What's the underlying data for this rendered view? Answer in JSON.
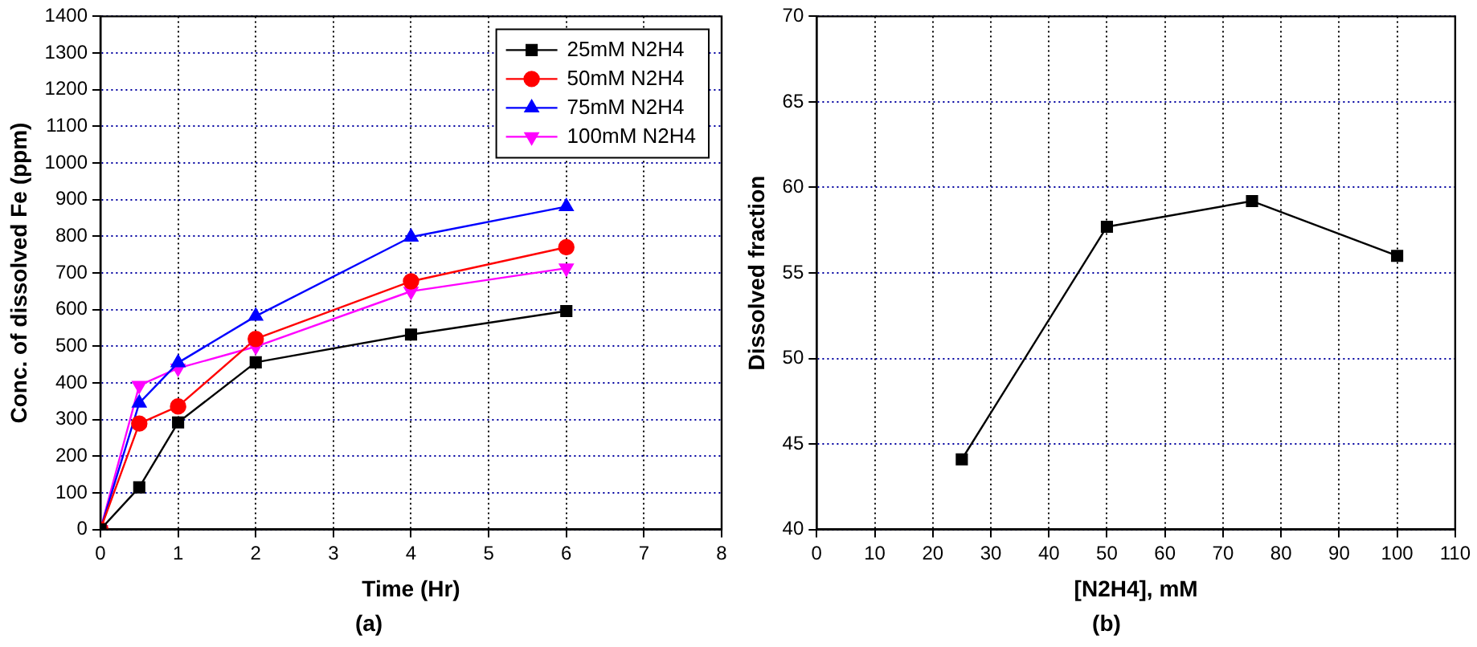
{
  "chart_data": [
    {
      "type": "line",
      "xlabel": "Time (Hr)",
      "ylabel": "Conc. of dissolved Fe (ppm)",
      "annotations": [
        "(a)"
      ],
      "xlim": [
        0,
        8
      ],
      "xticks": [
        0,
        1,
        2,
        3,
        4,
        5,
        6,
        7,
        8
      ],
      "ylim": [
        0,
        1400
      ],
      "yticks": [
        0,
        100,
        200,
        300,
        400,
        500,
        600,
        700,
        800,
        900,
        1000,
        1100,
        1200,
        1300,
        1400
      ],
      "grid": true,
      "legend": "top right",
      "series": [
        {
          "name": "25mM N2H4",
          "color": "#000000",
          "marker": "square",
          "x": [
            0,
            0.5,
            1,
            2,
            4,
            6
          ],
          "values": [
            0,
            115,
            292,
            456,
            532,
            596
          ]
        },
        {
          "name": "50mM N2H4",
          "color": "#ff0000",
          "marker": "circle",
          "x": [
            0,
            0.5,
            1,
            2,
            4,
            6
          ],
          "values": [
            0,
            289,
            336,
            520,
            677,
            770
          ]
        },
        {
          "name": "75mM N2H4",
          "color": "#0000ff",
          "marker": "triangle",
          "x": [
            0,
            0.5,
            1,
            2,
            4,
            6
          ],
          "values": [
            0,
            345,
            455,
            582,
            798,
            881
          ]
        },
        {
          "name": "100mM N2H4",
          "color": "#ff00ff",
          "marker": "triangle-down",
          "x": [
            0,
            0.5,
            1,
            2,
            4,
            6
          ],
          "values": [
            0,
            393,
            440,
            499,
            650,
            713
          ]
        }
      ]
    },
    {
      "type": "line",
      "xlabel": "[N2H4], mM",
      "ylabel": "Dissolved fraction",
      "annotations": [
        "(b)"
      ],
      "xlim": [
        0,
        110
      ],
      "xticks": [
        0,
        10,
        20,
        30,
        40,
        50,
        60,
        70,
        80,
        90,
        100,
        110
      ],
      "ylim": [
        40,
        70
      ],
      "yticks": [
        40,
        45,
        50,
        55,
        60,
        65,
        70
      ],
      "grid": true,
      "series": [
        {
          "color": "#000000",
          "marker": "square",
          "x": [
            25,
            50,
            75,
            100
          ],
          "values": [
            44.1,
            57.7,
            59.2,
            56.0
          ]
        }
      ]
    }
  ]
}
